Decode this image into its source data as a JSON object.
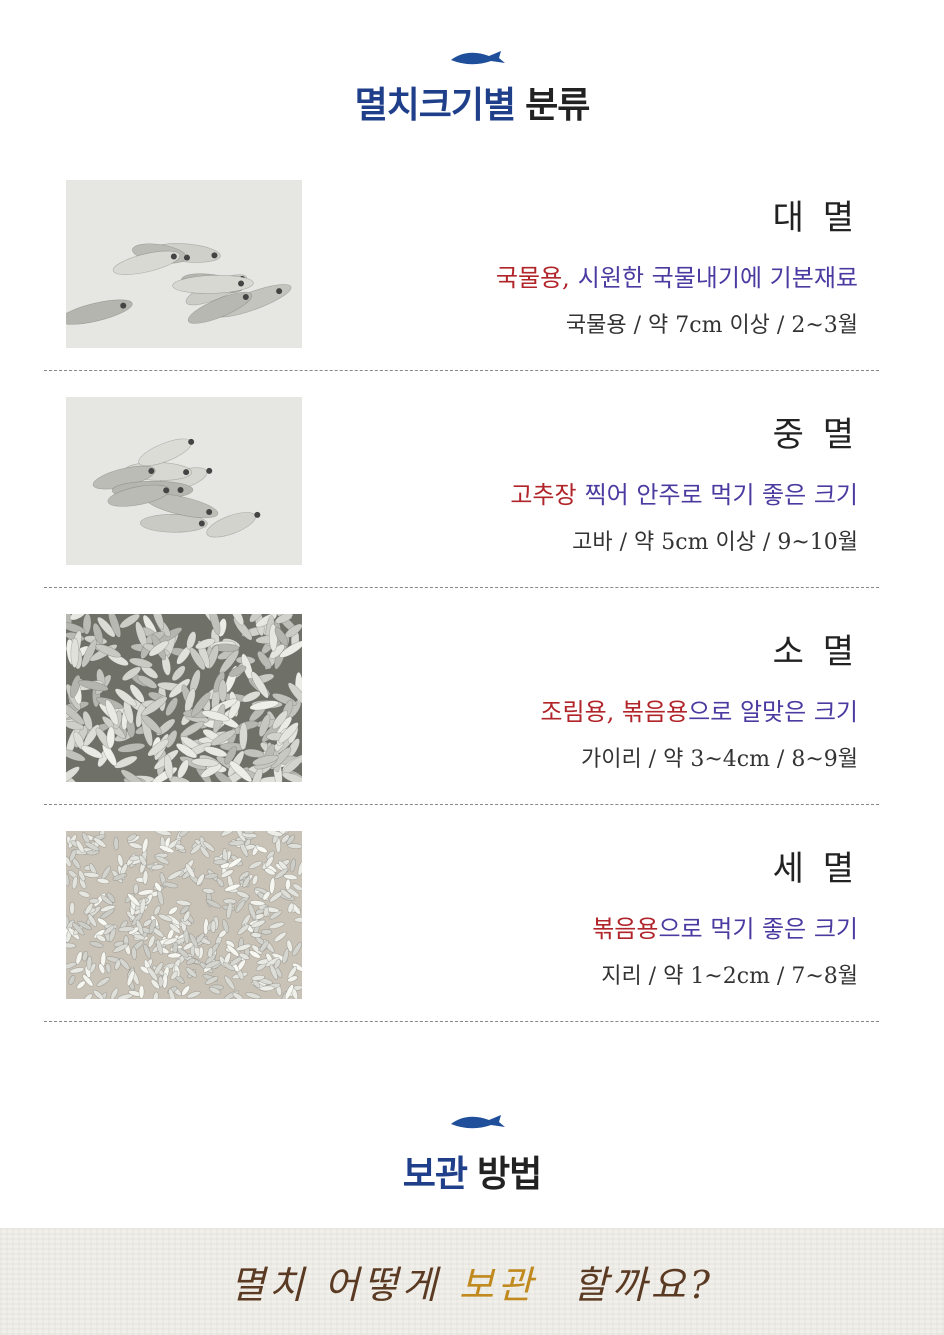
{
  "sections": [
    {
      "title": {
        "highlight": "멸치크기별",
        "rest": "분류"
      },
      "items": [
        {
          "name": "대 멸",
          "description": [
            {
              "text": "국물용,",
              "tone": "accent"
            },
            {
              "text": "시원한 국물내기에 기본재료",
              "tone": "main"
            }
          ],
          "spec": "국물용 / 약 7cm 이상 / 2~3월",
          "photo": "sparse"
        },
        {
          "name": "중 멸",
          "description": [
            {
              "text": "고추장",
              "tone": "accent"
            },
            {
              "text": "찍어 안주로 먹기 좋은 크기",
              "tone": "main"
            }
          ],
          "spec": "고바 / 약 5cm 이상 / 9~10월",
          "photo": "sparse"
        },
        {
          "name": "소 멸",
          "description": [
            {
              "text": "조림용, 볶음용",
              "tone": "accent"
            },
            {
              "text": "으로 알맞은 크기",
              "tone": "main",
              "joined": true
            }
          ],
          "spec": "가이리 / 약 3~4cm / 8~9월",
          "photo": "dense"
        },
        {
          "name": "세 멸",
          "description": [
            {
              "text": "볶음용",
              "tone": "accent"
            },
            {
              "text": "으로 먹기 좋은 크기",
              "tone": "main",
              "joined": true
            }
          ],
          "spec": "지리 / 약 1~2cm / 7~8월",
          "photo": "fine"
        }
      ]
    },
    {
      "title": {
        "highlight": "보관",
        "rest": "방법"
      }
    }
  ],
  "banner": [
    {
      "text": "멸치 어떻게",
      "tone": "main"
    },
    {
      "text": "보관",
      "tone": "accent"
    },
    {
      "text": "할까요?",
      "tone": "main"
    }
  ]
}
